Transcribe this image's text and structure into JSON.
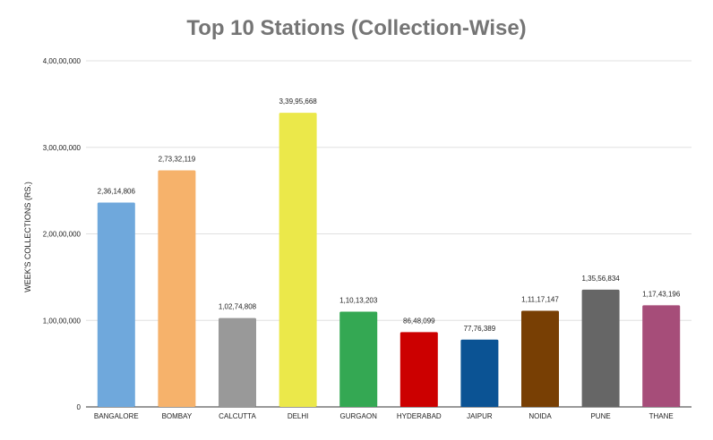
{
  "chart_data": {
    "type": "bar",
    "title": "Top 10 Stations (Collection-Wise)",
    "xlabel": "",
    "ylabel": "WEEK'S COLLECTIONS (RS.)",
    "ylim": [
      0,
      40000000
    ],
    "yticks": [
      {
        "value": 0,
        "label": "0"
      },
      {
        "value": 10000000,
        "label": "1,00,00,000"
      },
      {
        "value": 20000000,
        "label": "2,00,00,000"
      },
      {
        "value": 30000000,
        "label": "3,00,00,000"
      },
      {
        "value": 40000000,
        "label": "4,00,00,000"
      }
    ],
    "grid": true,
    "legend": "none",
    "categories": [
      "BANGALORE",
      "BOMBAY",
      "CALCUTTA",
      "DELHI",
      "GURGAON",
      "HYDERABAD",
      "JAIPUR",
      "NOIDA",
      "PUNE",
      "THANE"
    ],
    "values": [
      23614806,
      27332119,
      10274808,
      33995668,
      11013203,
      8648099,
      7776389,
      11117147,
      13556834,
      11743196
    ],
    "data_labels": [
      "2,36,14,806",
      "2,73,32,119",
      "1,02,74,808",
      "3,39,95,668",
      "1,10,13,203",
      "86,48,099",
      "77,76,389",
      "1,11,17,147",
      "1,35,56,834",
      "1,17,43,196"
    ],
    "colors": [
      "#6fa8dc",
      "#f6b26b",
      "#999999",
      "#ebe84a",
      "#34a853",
      "#cc0000",
      "#0b5394",
      "#783f04",
      "#666666",
      "#a64d79"
    ]
  }
}
